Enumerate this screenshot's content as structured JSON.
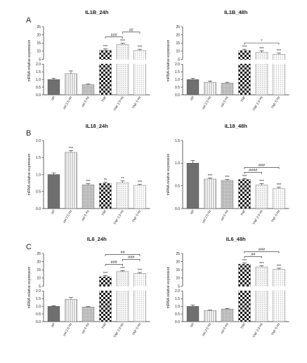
{
  "panel_letters": [
    "A",
    "B",
    "C"
  ],
  "chart_data": [
    {
      "type": "bar",
      "panel": "A",
      "title": "IL1B_24h",
      "ylabel": "mRNA relative expression",
      "categories": [
        "ctrl",
        "ctrl 2.5 Hz",
        "ctrl 5 Hz",
        "TNF",
        "TNF 2.5 Hz",
        "TNF 5 Hz"
      ],
      "values": [
        1.0,
        1.38,
        0.66,
        10.6,
        14.2,
        10.4
      ],
      "errors": [
        0.08,
        0.18,
        0.04,
        0.8,
        0.7,
        0.8
      ],
      "axis_break": {
        "lower": [
          0,
          2.0
        ],
        "upper": [
          5,
          25
        ]
      },
      "lower_ticks": [
        "0.0",
        "0.5",
        "1.0",
        "1.5",
        "2.0"
      ],
      "upper_ticks": [
        "5",
        "10",
        "15",
        "20",
        "25"
      ],
      "marks": [
        "",
        "",
        "",
        "***",
        "***",
        "***"
      ],
      "comparisons": [
        {
          "from": 3,
          "to": 4,
          "label": "###"
        },
        {
          "from": 4,
          "to": 5,
          "label": "##"
        }
      ]
    },
    {
      "type": "bar",
      "panel": "A",
      "title": "IL1B_48h",
      "ylabel": "mRNA relative expression",
      "categories": [
        "ctrl",
        "ctrl 2.5 Hz",
        "ctrl 5 Hz",
        "TNF",
        "TNF 2.5 Hz",
        "TNF 5 Hz"
      ],
      "values": [
        1.0,
        0.82,
        0.76,
        10.4,
        9.3,
        8.1
      ],
      "errors": [
        0.08,
        0.08,
        0.06,
        0.8,
        0.9,
        0.7
      ],
      "axis_break": {
        "lower": [
          0,
          2.0
        ],
        "upper": [
          5,
          25
        ]
      },
      "lower_ticks": [
        "0.0",
        "0.5",
        "1.0",
        "1.5",
        "2.0"
      ],
      "upper_ticks": [
        "5",
        "10",
        "15",
        "20",
        "25"
      ],
      "marks": [
        "",
        "",
        "",
        "***",
        "***",
        "***"
      ],
      "comparisons": [
        {
          "from": 3,
          "to": 5,
          "label": "*"
        }
      ]
    },
    {
      "type": "bar",
      "panel": "B",
      "title": "IL18_24h",
      "ylabel": "mRNA relative expression",
      "categories": [
        "ctrl",
        "ctrl 2.5 Hz",
        "ctrl 5 Hz",
        "TNF",
        "TNF 2.5 Hz",
        "TNF 5 Hz"
      ],
      "values": [
        1.0,
        1.65,
        0.7,
        0.74,
        0.76,
        0.68
      ],
      "errors": [
        0.05,
        0.05,
        0.03,
        0.03,
        0.05,
        0.03
      ],
      "ylim": [
        0,
        2.0
      ],
      "ticks": [
        "0.0",
        "0.5",
        "1.0",
        "1.5",
        "2.0"
      ],
      "marks": [
        "",
        "***",
        "***",
        "**",
        "**",
        "***"
      ],
      "comparisons": []
    },
    {
      "type": "bar",
      "panel": "B",
      "title": "IL18_48h",
      "ylabel": "mRNA relative expression",
      "categories": [
        "ctrl",
        "ctrl 2.5 Hz",
        "ctrl 5 Hz",
        "TNF",
        "TNF 2.5 Hz",
        "TNF 5 Hz"
      ],
      "values": [
        1.0,
        0.65,
        0.62,
        0.64,
        0.52,
        0.44
      ],
      "errors": [
        0.06,
        0.02,
        0.02,
        0.02,
        0.03,
        0.03
      ],
      "ylim": [
        0,
        1.5
      ],
      "ticks": [
        "0.0",
        "0.5",
        "1.0",
        "1.5"
      ],
      "marks": [
        "",
        "***",
        "***",
        "***",
        "***",
        "***"
      ],
      "comparisons": [
        {
          "from": 3,
          "to": 4,
          "label": "####"
        },
        {
          "from": 3,
          "to": 5,
          "label": "###"
        }
      ]
    },
    {
      "type": "bar",
      "panel": "C",
      "title": "IL6_24h",
      "ylabel": "mRNA relative expression",
      "categories": [
        "ctrl",
        "ctrl 2.5 Hz",
        "ctrl 5 Hz",
        "TNF",
        "TNF 2.5 Hz",
        "TNF 5 Hz"
      ],
      "values": [
        1.0,
        1.45,
        0.95,
        10.8,
        13.9,
        12.8
      ],
      "errors": [
        0.04,
        0.12,
        0.04,
        0.6,
        0.6,
        0.6
      ],
      "axis_break": {
        "lower": [
          0,
          2.0
        ],
        "upper": [
          5,
          25
        ]
      },
      "lower_ticks": [
        "0.0",
        "0.5",
        "1.0",
        "1.5",
        "2.0"
      ],
      "upper_ticks": [
        "5",
        "10",
        "15",
        "20",
        "25"
      ],
      "marks": [
        "",
        "",
        "",
        "***",
        "***",
        "***"
      ],
      "comparisons": [
        {
          "from": 3,
          "to": 4,
          "label": "###"
        },
        {
          "from": 4,
          "to": 5,
          "label": "###"
        },
        {
          "from": 3,
          "to": 5,
          "label": "##"
        }
      ]
    },
    {
      "type": "bar",
      "panel": "C",
      "title": "IL6_48h",
      "ylabel": "mRNA relative expression",
      "categories": [
        "ctrl",
        "ctrl 2.5 Hz",
        "ctrl 5 Hz",
        "TNF",
        "TNF 2.5 Hz",
        "TNF 5 Hz"
      ],
      "values": [
        1.0,
        0.72,
        0.82,
        18.5,
        16.8,
        15.3
      ],
      "errors": [
        0.08,
        0.03,
        0.04,
        0.8,
        0.6,
        0.7
      ],
      "axis_break": {
        "lower": [
          0,
          2.0
        ],
        "upper": [
          5,
          25
        ]
      },
      "lower_ticks": [
        "0.0",
        "0.5",
        "1.0",
        "1.5",
        "2.0"
      ],
      "upper_ticks": [
        "5",
        "10",
        "15",
        "20",
        "25"
      ],
      "marks": [
        "",
        "",
        "",
        "***",
        "***",
        "***"
      ],
      "comparisons": [
        {
          "from": 3,
          "to": 4,
          "label": "##"
        },
        {
          "from": 3,
          "to": 5,
          "label": "###"
        }
      ]
    }
  ],
  "bar_styles": [
    "solid-gray",
    "vertical-lines",
    "dense-dots",
    "checkerboard",
    "light-dots",
    "grid"
  ],
  "colors": {
    "ink": "#222222",
    "solid_bar": "#6f6f6f",
    "pattern_line": "#9a9a9a"
  }
}
